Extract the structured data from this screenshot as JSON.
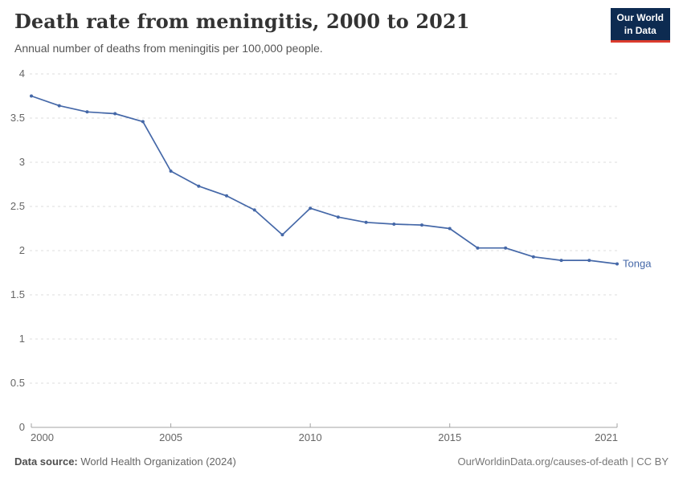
{
  "header": {
    "title": "Death rate from meningitis, 2000 to 2021",
    "subtitle": "Annual number of deaths from meningitis per 100,000 people."
  },
  "logo": {
    "line1": "Our World",
    "line2": "in Data",
    "bg_color": "#0d2b51",
    "stripe_color": "#dc3b2e"
  },
  "footer": {
    "source_label": "Data source:",
    "source_value": "World Health Organization (2024)",
    "attribution": "OurWorldinData.org/causes-of-death | CC BY"
  },
  "chart_data": {
    "type": "line",
    "title": "Death rate from meningitis, 2000 to 2021",
    "subtitle": "Annual number of deaths from meningitis per 100,000 people.",
    "xlabel": "",
    "ylabel": "",
    "x": [
      2000,
      2001,
      2002,
      2003,
      2004,
      2005,
      2006,
      2007,
      2008,
      2009,
      2010,
      2011,
      2012,
      2013,
      2014,
      2015,
      2016,
      2017,
      2018,
      2019,
      2020,
      2021
    ],
    "series": [
      {
        "name": "Tonga",
        "color": "#4568a8",
        "values": [
          3.75,
          3.64,
          3.57,
          3.55,
          3.46,
          2.9,
          2.73,
          2.62,
          2.46,
          2.18,
          2.48,
          2.38,
          2.32,
          2.3,
          2.29,
          2.25,
          2.03,
          2.03,
          1.93,
          1.89,
          1.89,
          1.85
        ]
      }
    ],
    "ylim": [
      0,
      4
    ],
    "yticks": [
      0,
      0.5,
      1,
      1.5,
      2,
      2.5,
      3,
      3.5,
      4
    ],
    "xticks": [
      2000,
      2005,
      2010,
      2015,
      2021
    ],
    "grid": "horizontal dashed",
    "legend_position": "end-of-line label",
    "axis_color": "#a3a3a3",
    "gridline_color": "#dddddd",
    "tick_label_color": "#666666"
  }
}
